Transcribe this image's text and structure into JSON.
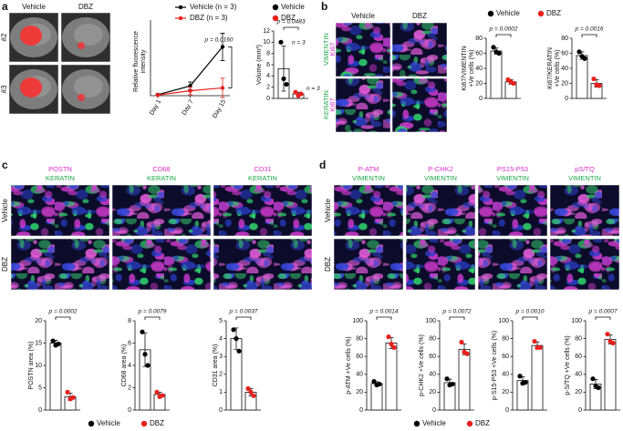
{
  "panel_labels": [
    "a",
    "b",
    "c",
    "d"
  ],
  "images_a": {
    "columns": [
      "Vehicle",
      "DBZ"
    ],
    "rows": [
      "#2",
      "#3"
    ]
  },
  "images_b": {
    "columns": [
      "Vehicle",
      "DBZ"
    ],
    "rows": [
      [
        "VIMENTIN",
        "Ki67"
      ],
      [
        "KERATIN",
        "Ki67"
      ]
    ]
  },
  "images_c": {
    "columns": [
      [
        "POSTN",
        "KERATIN"
      ],
      [
        "CD68",
        "KERATIN"
      ],
      [
        "CD31",
        "KERATIN"
      ]
    ],
    "rows": [
      "Vehicle",
      "DBZ"
    ]
  },
  "images_d": {
    "columns": [
      [
        "P-ATM",
        "VIMENTIN"
      ],
      [
        "P-CHK2",
        "VIMENTIN"
      ],
      [
        "PS15-P53",
        "VIMENTIN"
      ],
      [
        "pS/TQ",
        "VIMENTIN"
      ]
    ],
    "rows": [
      "Vehicle",
      "DBZ"
    ]
  },
  "legends": [
    {
      "entries": [
        {
          "name": "Vehicle",
          "color": "#000000"
        },
        {
          "name": "DBZ",
          "color": "#e8211d"
        }
      ]
    },
    {
      "entries": [
        {
          "name": "Vehicle",
          "color": "#000000"
        },
        {
          "name": "DBZ",
          "color": "#e8211d"
        }
      ]
    },
    {
      "entries": [
        {
          "name": "Vehicle",
          "color": "#000000"
        },
        {
          "name": "DBZ",
          "color": "#e8211d"
        }
      ]
    },
    {
      "entries": [
        {
          "name": "Vehicle",
          "color": "#000000"
        },
        {
          "name": "DBZ",
          "color": "#e8211d"
        }
      ]
    }
  ],
  "chart_data": [
    {
      "type": "line",
      "ylabel": [
        "Relative fluorescence",
        "intensity"
      ],
      "categories": [
        "Day 1",
        "Day 7",
        "Day 15"
      ],
      "series": [
        {
          "name": "Vehicle (n = 3)",
          "color": "#000000",
          "values": [
            0.5,
            5,
            25
          ],
          "errors": [
            0.3,
            2,
            7
          ]
        },
        {
          "name": "DBZ (n = 3)",
          "color": "#e8211d",
          "values": [
            0.3,
            2.5,
            4
          ],
          "errors": [
            0.2,
            2,
            5
          ]
        }
      ],
      "ylim": [
        0,
        35
      ],
      "annotations": [
        "p = 0.0160"
      ]
    },
    {
      "type": "bar",
      "ylabel": [
        "Volume (mm³)"
      ],
      "values": [
        5.3,
        0.8
      ],
      "errors": [
        4,
        0.3
      ],
      "points": [
        [
          10,
          3.5,
          2.5
        ],
        [
          1.1,
          0.5,
          0.8
        ]
      ],
      "colors": [
        "#000000",
        "#e8211d"
      ],
      "ylim": [
        0,
        12
      ],
      "yticks": [
        0,
        2,
        4,
        6,
        8,
        10,
        12
      ],
      "annotations": [
        "p = 0.0483",
        "n = 3",
        "n = 3"
      ]
    },
    {
      "type": "bar",
      "ylabel": [
        "Ki67/VIMENTIN",
        "+Ve cells (%)"
      ],
      "values": [
        63,
        22
      ],
      "errors": [
        4,
        3
      ],
      "points": [
        [
          68,
          62,
          60
        ],
        [
          25,
          22,
          20
        ]
      ],
      "colors": [
        "#000000",
        "#e8211d"
      ],
      "ylim": [
        0,
        80
      ],
      "yticks": [
        0,
        20,
        40,
        60,
        80
      ],
      "annotations": [
        "p = 0.0002"
      ]
    },
    {
      "type": "bar",
      "ylabel": [
        "Ki67/KERATIN",
        "+Ve cells (%)"
      ],
      "values": [
        57,
        20
      ],
      "errors": [
        5,
        5
      ],
      "points": [
        [
          62,
          56,
          53
        ],
        [
          26,
          18,
          17
        ]
      ],
      "colors": [
        "#000000",
        "#e8211d"
      ],
      "ylim": [
        0,
        80
      ],
      "yticks": [
        0,
        20,
        40,
        60,
        80
      ],
      "annotations": [
        "p = 0.0016"
      ]
    },
    {
      "type": "bar",
      "ylabel": [
        "POSTN area (%)"
      ],
      "values": [
        15,
        3
      ],
      "errors": [
        0.6,
        0.8
      ],
      "points": [
        [
          15.5,
          14.5,
          14.8
        ],
        [
          4,
          2.5,
          2.8
        ]
      ],
      "colors": [
        "#000000",
        "#e8211d"
      ],
      "ylim": [
        0,
        20
      ],
      "yticks": [
        0,
        5,
        10,
        15,
        20
      ],
      "annotations": [
        "p = 0.0002"
      ]
    },
    {
      "type": "bar",
      "ylabel": [
        "CD68 area (%)"
      ],
      "values": [
        5.4,
        1.4
      ],
      "errors": [
        1.5,
        0.2
      ],
      "points": [
        [
          7,
          5,
          4
        ],
        [
          1.6,
          1.2,
          1.3
        ]
      ],
      "colors": [
        "#000000",
        "#e8211d"
      ],
      "ylim": [
        0,
        8
      ],
      "yticks": [
        0,
        2,
        4,
        6,
        8
      ],
      "annotations": [
        "p = 0.0079"
      ]
    },
    {
      "type": "bar",
      "ylabel": [
        "CD31 area (%)"
      ],
      "values": [
        4,
        1
      ],
      "errors": [
        0.6,
        0.2
      ],
      "points": [
        [
          4.5,
          4,
          3.3
        ],
        [
          1.2,
          1,
          0.8
        ]
      ],
      "colors": [
        "#000000",
        "#e8211d"
      ],
      "ylim": [
        0,
        5
      ],
      "yticks": [
        0,
        1,
        2,
        3,
        4,
        5
      ],
      "annotations": [
        "p = 0.0037"
      ]
    },
    {
      "type": "bar",
      "ylabel": [
        "p-ATM +Ve cells (%)"
      ],
      "values": [
        29.7,
        75
      ],
      "errors": [
        2,
        6
      ],
      "points": [
        [
          32,
          28,
          29
        ],
        [
          82,
          74,
          70
        ]
      ],
      "colors": [
        "#000000",
        "#e8211d"
      ],
      "ylim": [
        0,
        100
      ],
      "yticks": [
        0,
        20,
        40,
        60,
        80,
        100
      ],
      "annotations": [
        "p = 0.0014"
      ]
    },
    {
      "type": "bar",
      "ylabel": [
        "p-CHK2 +Ve cells (%)"
      ],
      "values": [
        30.7,
        68
      ],
      "errors": [
        3.8,
        6
      ],
      "points": [
        [
          35,
          28,
          29
        ],
        [
          76,
          65,
          63
        ]
      ],
      "colors": [
        "#000000",
        "#e8211d"
      ],
      "ylim": [
        0,
        100
      ],
      "yticks": [
        0,
        20,
        40,
        60,
        80,
        100
      ],
      "annotations": [
        "p = 0.0072"
      ]
    },
    {
      "type": "bar",
      "ylabel": [
        "p-S15-P53 +Ve cells (%)"
      ],
      "values": [
        33,
        72.3
      ],
      "errors": [
        4.4,
        4
      ],
      "points": [
        [
          38,
          30,
          31
        ],
        [
          77,
          70,
          70
        ]
      ],
      "colors": [
        "#000000",
        "#e8211d"
      ],
      "ylim": [
        0,
        100
      ],
      "yticks": [
        0,
        20,
        40,
        60,
        80,
        100
      ],
      "annotations": [
        "p = 0.0010"
      ]
    },
    {
      "type": "bar",
      "ylabel": [
        "p-S/TQ +Ve cells (%)"
      ],
      "values": [
        29,
        79
      ],
      "errors": [
        5,
        5
      ],
      "points": [
        [
          35,
          27,
          25
        ],
        [
          85,
          77,
          75
        ]
      ],
      "colors": [
        "#000000",
        "#e8211d"
      ],
      "ylim": [
        0,
        100
      ],
      "yticks": [
        0,
        20,
        40,
        60,
        80,
        100
      ],
      "annotations": [
        "p = 0.0007"
      ]
    }
  ]
}
